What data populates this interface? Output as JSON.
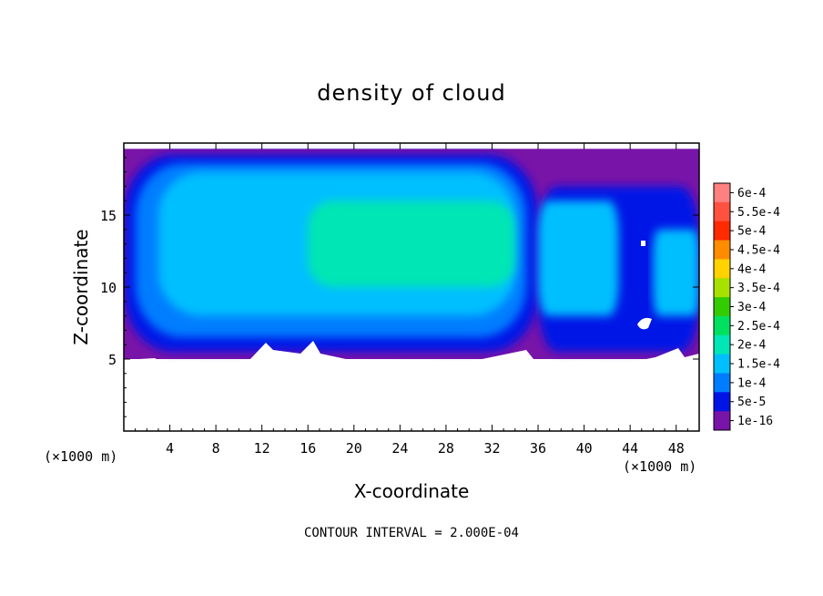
{
  "chart_data": {
    "type": "heatmap",
    "title": "density of cloud",
    "xlabel": "X-coordinate",
    "ylabel": "Z-coordinate",
    "x_unit_label": "(×1000 m)",
    "x_unit_label_right": "(×1000 m)",
    "xlim": [
      0,
      50
    ],
    "ylim": [
      0,
      20
    ],
    "x_ticks": [
      4,
      8,
      12,
      16,
      20,
      24,
      28,
      32,
      36,
      40,
      44,
      48
    ],
    "x_tick_labels": [
      "4",
      "8",
      "12",
      "16",
      "20",
      "24",
      "28",
      "32",
      "36",
      "40",
      "44",
      "48"
    ],
    "y_ticks": [
      5,
      10,
      15
    ],
    "y_tick_labels": [
      "5",
      "10",
      "15"
    ],
    "contour_interval_text": "CONTOUR INTERVAL = 2.000E-04",
    "legend_placement": "right",
    "colorbar": [
      {
        "label": "6e-4",
        "color": "#ff8080"
      },
      {
        "label": "5.5e-4",
        "color": "#ff5040"
      },
      {
        "label": "5e-4",
        "color": "#ff2a00"
      },
      {
        "label": "4.5e-4",
        "color": "#ff8c00"
      },
      {
        "label": "4e-4",
        "color": "#ffd200"
      },
      {
        "label": "3.5e-4",
        "color": "#a8e000"
      },
      {
        "label": "3e-4",
        "color": "#33cc00"
      },
      {
        "label": "2.5e-4",
        "color": "#00e060"
      },
      {
        "label": "2e-4",
        "color": "#00e6b4"
      },
      {
        "label": "1.5e-4",
        "color": "#00bfff"
      },
      {
        "label": "1e-4",
        "color": "#007dff"
      },
      {
        "label": "5e-5",
        "color": "#0014e6"
      },
      {
        "label": "1e-16",
        "color": "#7814a8"
      }
    ],
    "field_regions": [
      {
        "name": "cloud-base-layer",
        "level": "1e-16",
        "x": [
          0,
          50
        ],
        "z": [
          5,
          19.6
        ]
      },
      {
        "name": "cloud-envelope",
        "level": "5e-5",
        "x": [
          0,
          36
        ],
        "z": [
          5.5,
          19.2
        ]
      },
      {
        "name": "cloud-envelope-east",
        "level": "5e-5",
        "x": [
          36,
          50
        ],
        "z": [
          5.5,
          17
        ]
      },
      {
        "name": "cloud-interior",
        "level": "1e-4",
        "x": [
          1,
          35
        ],
        "z": [
          6.5,
          18.6
        ]
      },
      {
        "name": "cloud-core",
        "level": "1.5e-4",
        "x": [
          3,
          34
        ],
        "z": [
          8,
          18
        ]
      },
      {
        "name": "cloud-peak",
        "level": "2e-4",
        "x": [
          16,
          34
        ],
        "z": [
          10,
          16
        ]
      },
      {
        "name": "east-cell",
        "level": "1.5e-4",
        "x": [
          36,
          43
        ],
        "z": [
          8,
          16
        ]
      },
      {
        "name": "far-east-cell",
        "level": "1.5e-4",
        "x": [
          46,
          50
        ],
        "z": [
          8,
          14
        ]
      }
    ]
  }
}
